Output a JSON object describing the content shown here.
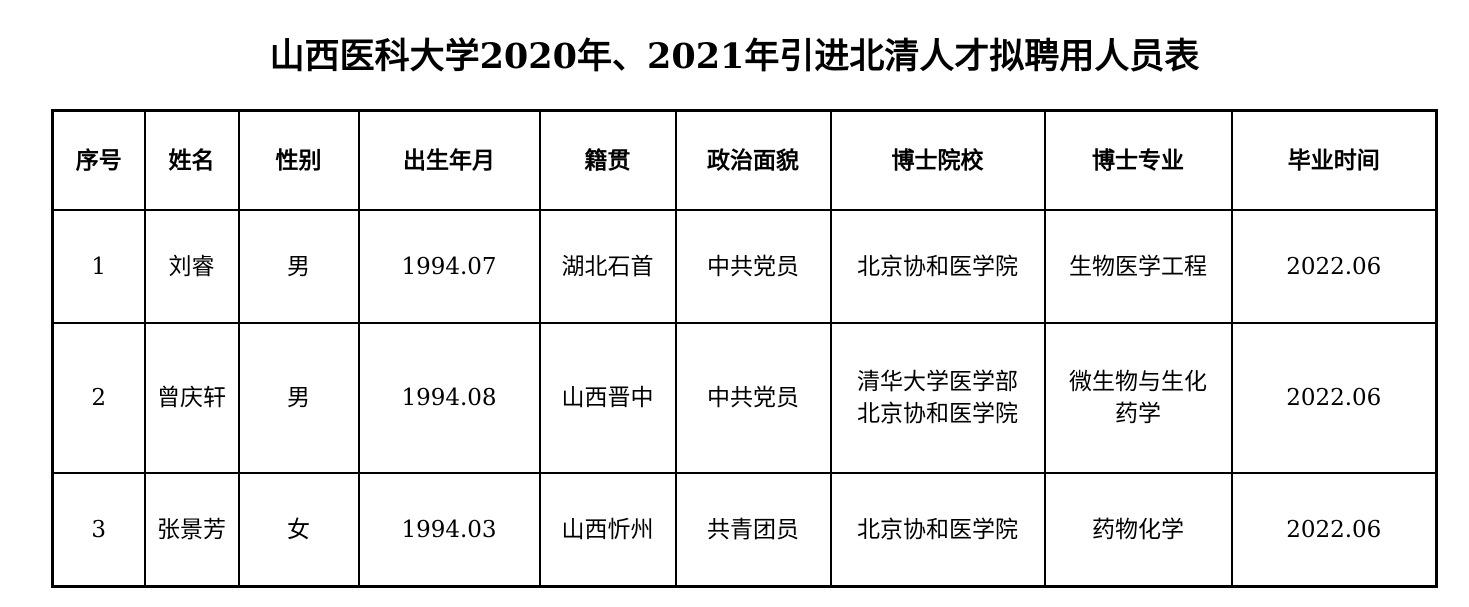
{
  "title": "山西医科大学2020年、2021年引进北清人才拟聘用人员表",
  "table": {
    "headers": [
      "序号",
      "姓名",
      "性别",
      "出生年月",
      "籍贯",
      "政治面貌",
      "博士院校",
      "博士专业",
      "毕业时间"
    ],
    "rows": [
      [
        "1",
        "刘睿",
        "男",
        "1994.07",
        "湖北石首",
        "中共党员",
        "北京协和医学院",
        "生物医学工程",
        "2022.06"
      ],
      [
        "2",
        "曾庆轩",
        "男",
        "1994.08",
        "山西晋中",
        "中共党员",
        "清华大学医学部\n北京协和医学院",
        "微生物与生化\n药学",
        "2022.06"
      ],
      [
        "3",
        "张景芳",
        "女",
        "1994.03",
        "山西忻州",
        "共青团员",
        "北京协和医学院",
        "药物化学",
        "2022.06"
      ]
    ]
  }
}
